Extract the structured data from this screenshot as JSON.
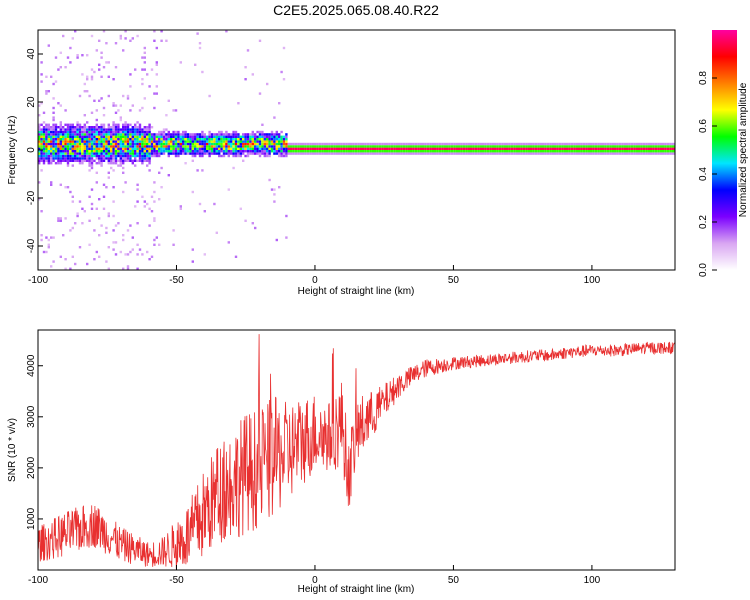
{
  "chart_data": [
    {
      "type": "heatmap",
      "title": "C2E5.2025.065.08.40.R22",
      "xlabel": "Height of straight line (km)",
      "ylabel": "Frequency (Hz)",
      "xlim": [
        -100,
        130
      ],
      "ylim": [
        -50,
        50
      ],
      "xticks": [
        "-100",
        "-50",
        "0",
        "50",
        "100"
      ],
      "yticks": [
        "-40",
        "-20",
        "0",
        "20",
        "40"
      ],
      "grid": false,
      "colorbar": {
        "label": "Normalized spectral amplitude",
        "range": [
          0,
          1
        ],
        "ticks": [
          "0.0",
          "0.2",
          "0.4",
          "0.6",
          "0.8"
        ],
        "colors": [
          "#ffffff",
          "#d9a6f2",
          "#7b00ff",
          "#0000ff",
          "#00e5ff",
          "#00ff00",
          "#ffff00",
          "#ff7f00",
          "#ff0000",
          "#ff00a0"
        ]
      },
      "bands": [
        {
          "x": [
            -100,
            -60
          ],
          "center": 2,
          "width": 8
        },
        {
          "x": [
            -60,
            -10
          ],
          "center": 2,
          "width": 5
        },
        {
          "x": [
            -10,
            130
          ],
          "center": 0,
          "width": 1
        }
      ]
    },
    {
      "type": "line",
      "xlabel": "Height of straight line (km)",
      "ylabel": "SNR (10 * v/v)",
      "xlim": [
        -100,
        130
      ],
      "ylim": [
        0,
        4700
      ],
      "xticks": [
        "-100",
        "-50",
        "0",
        "50",
        "100"
      ],
      "yticks": [
        "1000",
        "2000",
        "3000",
        "4000"
      ],
      "grid": false,
      "color": "#e83030",
      "x": [
        -100,
        -95,
        -90,
        -85,
        -80,
        -75,
        -70,
        -65,
        -60,
        -55,
        -50,
        -45,
        -40,
        -35,
        -30,
        -25,
        -20,
        -15,
        -10,
        -5,
        0,
        5,
        10,
        12,
        15,
        20,
        25,
        30,
        35,
        40,
        45,
        50,
        60,
        70,
        80,
        85,
        90,
        100,
        110,
        120,
        130
      ],
      "y": [
        500,
        600,
        700,
        800,
        900,
        700,
        500,
        400,
        300,
        350,
        500,
        700,
        1100,
        1500,
        1700,
        1900,
        2000,
        2200,
        2300,
        2500,
        2700,
        2600,
        2900,
        1800,
        2700,
        3000,
        3300,
        3600,
        3800,
        3950,
        4000,
        4050,
        4100,
        4150,
        4200,
        4200,
        4250,
        4300,
        4300,
        4350,
        4350
      ],
      "spread": [
        350,
        400,
        450,
        450,
        450,
        400,
        350,
        300,
        250,
        300,
        500,
        700,
        900,
        1000,
        1100,
        1200,
        1200,
        1200,
        1000,
        900,
        800,
        700,
        900,
        700,
        700,
        500,
        350,
        250,
        200,
        180,
        150,
        130,
        120,
        120,
        120,
        120,
        120,
        120,
        120,
        120,
        120
      ]
    }
  ]
}
